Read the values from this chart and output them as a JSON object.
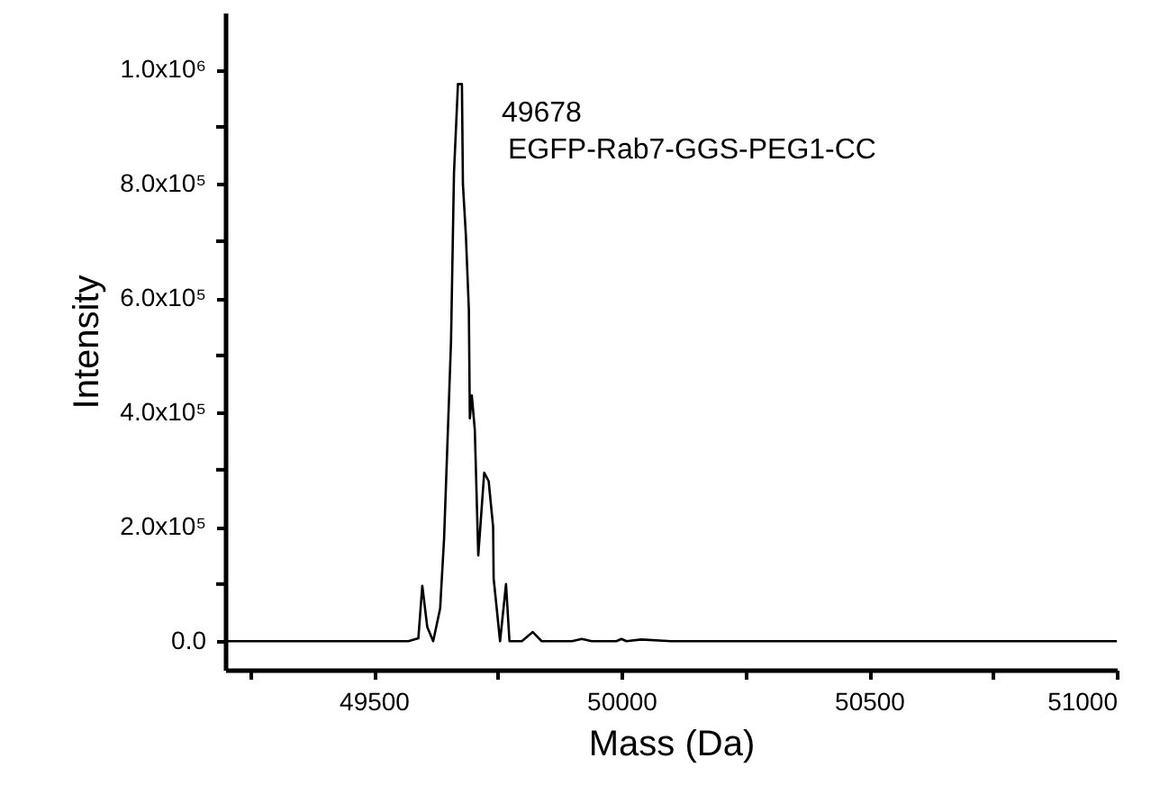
{
  "chart_data": {
    "type": "line",
    "xlabel": "Mass (Da)",
    "ylabel": "Intensity",
    "x": [
      49200,
      49400,
      49570,
      49590,
      49598,
      49608,
      49620,
      49634,
      49642,
      49656,
      49662,
      49670,
      49678,
      49680,
      49686,
      49692,
      49694,
      49698,
      49704,
      49711,
      49723,
      49732,
      49741,
      49742,
      49755,
      49767,
      49774,
      49799,
      49821,
      49839,
      49900,
      49920,
      49940,
      49990,
      50000,
      50010,
      50040,
      50100,
      50500,
      51000
    ],
    "series": [
      {
        "color": "#000000",
        "values": [
          0,
          0,
          0,
          5000,
          97000,
          25000,
          0,
          57000,
          180000,
          525000,
          820000,
          975000,
          975000,
          800000,
          710000,
          580000,
          390000,
          430000,
          370000,
          150000,
          295000,
          280000,
          200000,
          110000,
          0,
          100000,
          0,
          0,
          16000,
          0,
          0,
          4000,
          0,
          0,
          4000,
          0,
          3000,
          0,
          0,
          0
        ]
      }
    ],
    "annotations": [
      {
        "text": "49678",
        "x": 49678,
        "y": 975000
      },
      "EGFP-Rab7-GGS-PEG1-CC"
    ],
    "xlim": [
      49200,
      51000
    ],
    "xticks": [
      {
        "value": 49250,
        "label": null
      },
      49500,
      {
        "value": 49750,
        "label": null
      },
      50000,
      {
        "value": 50250,
        "label": null
      },
      50500,
      {
        "value": 50750,
        "label": null
      },
      51000
    ],
    "ylim": [
      -50000,
      1100000
    ],
    "yticks": [
      {
        "value": 0,
        "label": "0.0"
      },
      {
        "value": 100000,
        "label": null
      },
      {
        "value": 200000,
        "label": "2.0x10⁵"
      },
      {
        "value": 300000,
        "label": null
      },
      {
        "value": 400000,
        "label": "4.0x10⁵"
      },
      {
        "value": 500000,
        "label": null
      },
      {
        "value": 600000,
        "label": "6.0x10⁵"
      },
      {
        "value": 700000,
        "label": null
      },
      {
        "value": 800000,
        "label": "8.0x10⁵"
      },
      {
        "value": 900000,
        "label": null
      },
      {
        "value": 1000000,
        "label": "1.0x10⁶"
      }
    ],
    "grid": false,
    "marker": "none",
    "line_style": "solid"
  }
}
